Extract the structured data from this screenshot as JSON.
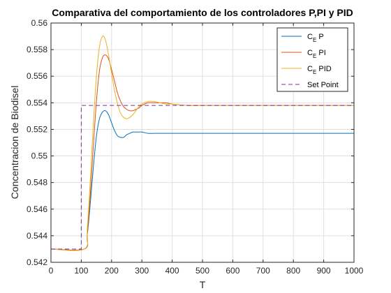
{
  "chart_data": {
    "type": "line",
    "title": "Comparativa del comportamiento de los controladores P,PI y PID",
    "xlabel": "T",
    "ylabel": "Concentracion de Biodisel",
    "xlim": [
      0,
      1000
    ],
    "ylim": [
      0.542,
      0.56
    ],
    "xticks": [
      0,
      100,
      200,
      300,
      400,
      500,
      600,
      700,
      800,
      900,
      1000
    ],
    "xtick_labels": [
      "0",
      "100",
      "200",
      "300",
      "400",
      "500",
      "600",
      "700",
      "800",
      "900",
      "1000"
    ],
    "yticks": [
      0.542,
      0.544,
      0.546,
      0.548,
      0.55,
      0.552,
      0.554,
      0.556,
      0.558,
      0.56
    ],
    "ytick_labels": [
      "0.542",
      "0.544",
      "0.546",
      "0.548",
      "0.55",
      "0.552",
      "0.554",
      "0.556",
      "0.558",
      "0.56"
    ],
    "grid": true,
    "legend_position": "top-right",
    "series": [
      {
        "label_main": "C",
        "label_sub": "E",
        "label_rest": " P",
        "color": "#0072BD",
        "dash": "solid",
        "x": [
          0,
          110,
          120,
          130,
          140,
          150,
          160,
          170,
          180,
          190,
          200,
          210,
          220,
          230,
          240,
          250,
          260,
          270,
          280,
          290,
          300,
          320,
          340,
          360,
          380,
          400,
          450,
          500,
          600,
          700,
          800,
          900,
          1000
        ],
        "y": [
          0.543,
          0.543,
          0.5441,
          0.5465,
          0.5492,
          0.5515,
          0.5528,
          0.5533,
          0.5534,
          0.5531,
          0.5525,
          0.5519,
          0.5515,
          0.5514,
          0.5514,
          0.5516,
          0.5517,
          0.5518,
          0.5518,
          0.5518,
          0.5518,
          0.5517,
          0.5517,
          0.5517,
          0.5517,
          0.5517,
          0.5517,
          0.5517,
          0.5517,
          0.5517,
          0.5517,
          0.5517,
          0.5517
        ]
      },
      {
        "label_main": "C",
        "label_sub": "E",
        "label_rest": " PI",
        "color": "#D95319",
        "dash": "solid",
        "x": [
          0,
          110,
          120,
          130,
          140,
          150,
          160,
          170,
          180,
          190,
          200,
          210,
          220,
          230,
          240,
          250,
          260,
          270,
          280,
          290,
          300,
          320,
          340,
          360,
          380,
          400,
          450,
          500,
          600,
          700,
          800,
          900,
          1000
        ],
        "y": [
          0.543,
          0.543,
          0.5442,
          0.5472,
          0.5508,
          0.5541,
          0.5564,
          0.5574,
          0.5576,
          0.5573,
          0.5565,
          0.5556,
          0.5547,
          0.5541,
          0.5537,
          0.5535,
          0.5534,
          0.5534,
          0.5535,
          0.5536,
          0.5538,
          0.554,
          0.554,
          0.554,
          0.554,
          0.5539,
          0.5538,
          0.5538,
          0.5538,
          0.5538,
          0.5538,
          0.5538,
          0.5538
        ]
      },
      {
        "label_main": "C",
        "label_sub": "E",
        "label_rest": " PID",
        "color": "#EDB120",
        "dash": "solid",
        "x": [
          0,
          110,
          120,
          130,
          140,
          150,
          160,
          170,
          180,
          190,
          200,
          210,
          220,
          230,
          240,
          250,
          260,
          270,
          280,
          290,
          300,
          320,
          340,
          360,
          380,
          400,
          450,
          500,
          600,
          700,
          800,
          900,
          1000
        ],
        "y": [
          0.543,
          0.543,
          0.5446,
          0.5483,
          0.5525,
          0.556,
          0.5582,
          0.559,
          0.5587,
          0.5576,
          0.5562,
          0.5549,
          0.5539,
          0.5532,
          0.5529,
          0.5528,
          0.5529,
          0.5531,
          0.5534,
          0.5537,
          0.5539,
          0.5541,
          0.5541,
          0.554,
          0.5539,
          0.5539,
          0.5538,
          0.5538,
          0.5538,
          0.5538,
          0.5538,
          0.5538,
          0.5538
        ]
      },
      {
        "label_main": "Set Point",
        "label_sub": "",
        "label_rest": "",
        "color": "#7E2F8E",
        "dash": "dashed",
        "x": [
          0,
          100,
          100,
          1000
        ],
        "y": [
          0.543,
          0.543,
          0.5538,
          0.5538
        ]
      }
    ]
  }
}
